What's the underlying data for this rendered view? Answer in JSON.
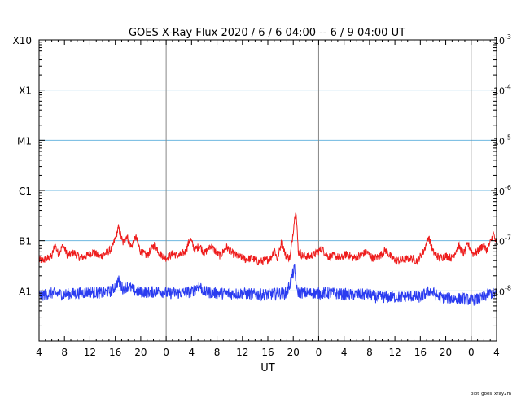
{
  "chart_data": {
    "type": "line",
    "title": "GOES X-Ray Flux   2020 /  6 /  6   04:00 --  6 /  9   04:00   UT",
    "xlabel": "UT",
    "footer": "plot_goes_xray2m",
    "x_range_hours": [
      0,
      72
    ],
    "x_tick_labels": [
      "4",
      "8",
      "12",
      "16",
      "20",
      "0",
      "4",
      "8",
      "12",
      "16",
      "20",
      "0",
      "4",
      "8",
      "12",
      "16",
      "20",
      "0",
      "4"
    ],
    "day_boundaries_hours": [
      20,
      44,
      68
    ],
    "y_scale": "log",
    "ylim": [
      1e-09,
      0.001
    ],
    "left_axis_labels": [
      {
        "label": "X10",
        "flux": 0.001
      },
      {
        "label": "X1",
        "flux": 0.0001
      },
      {
        "label": "M1",
        "flux": 1e-05
      },
      {
        "label": "C1",
        "flux": 1e-06
      },
      {
        "label": "B1",
        "flux": 1e-07
      },
      {
        "label": "A1",
        "flux": 1e-08
      }
    ],
    "right_axis_labels": [
      {
        "base": "10",
        "exp": "-3",
        "flux": 0.001
      },
      {
        "base": "10",
        "exp": "-4",
        "flux": 0.0001
      },
      {
        "base": "10",
        "exp": "-5",
        "flux": 1e-05
      },
      {
        "base": "10",
        "exp": "-6",
        "flux": 1e-06
      },
      {
        "base": "10",
        "exp": "-7",
        "flux": 1e-07
      },
      {
        "base": "10",
        "exp": "-8",
        "flux": 1e-08
      }
    ],
    "grid_flux_levels": [
      0.0001,
      1e-05,
      1e-06,
      1e-07,
      1e-08
    ],
    "series": [
      {
        "color": "#ee1c1c",
        "points": [
          [
            0,
            4e-08
          ],
          [
            1,
            4.2e-08
          ],
          [
            2,
            4.8e-08
          ],
          [
            2.5,
            8.5e-08
          ],
          [
            3,
            5.5e-08
          ],
          [
            3.8,
            8e-08
          ],
          [
            4.5,
            5e-08
          ],
          [
            5.5,
            5.8e-08
          ],
          [
            6.5,
            4.5e-08
          ],
          [
            7.5,
            5e-08
          ],
          [
            8.5,
            6e-08
          ],
          [
            9.5,
            4.8e-08
          ],
          [
            10.5,
            5.6e-08
          ],
          [
            11.5,
            7e-08
          ],
          [
            12.5,
            1.8e-07
          ],
          [
            13.2,
            9e-08
          ],
          [
            13.8,
            1.25e-07
          ],
          [
            14.5,
            7.5e-08
          ],
          [
            15.2,
            1.2e-07
          ],
          [
            16,
            6e-08
          ],
          [
            17,
            5e-08
          ],
          [
            18.2,
            8.5e-08
          ],
          [
            19,
            5.5e-08
          ],
          [
            20,
            4.5e-08
          ],
          [
            21,
            5.5e-08
          ],
          [
            22,
            5e-08
          ],
          [
            23,
            6e-08
          ],
          [
            23.8,
            1.1e-07
          ],
          [
            24.5,
            6.5e-08
          ],
          [
            25.3,
            8e-08
          ],
          [
            26,
            5.5e-08
          ],
          [
            27,
            8e-08
          ],
          [
            27.8,
            6e-08
          ],
          [
            28.5,
            5e-08
          ],
          [
            29.5,
            7.5e-08
          ],
          [
            30.5,
            5.5e-08
          ],
          [
            31.5,
            4.8e-08
          ],
          [
            32.5,
            4.2e-08
          ],
          [
            33.5,
            4.5e-08
          ],
          [
            34.5,
            3.8e-08
          ],
          [
            35.5,
            4e-08
          ],
          [
            36.5,
            4.5e-08
          ],
          [
            37,
            7e-08
          ],
          [
            37.5,
            4.2e-08
          ],
          [
            38.2,
            1e-07
          ],
          [
            38.8,
            5e-08
          ],
          [
            39.5,
            4.5e-08
          ],
          [
            40.4,
            4.5e-07
          ],
          [
            40.8,
            6e-08
          ],
          [
            41.5,
            5e-08
          ],
          [
            42.5,
            4.8e-08
          ],
          [
            43.5,
            5.5e-08
          ],
          [
            44.5,
            7e-08
          ],
          [
            45.5,
            4.8e-08
          ],
          [
            46.5,
            5e-08
          ],
          [
            47.5,
            4.5e-08
          ],
          [
            48.5,
            5.5e-08
          ],
          [
            49.5,
            4.5e-08
          ],
          [
            50.5,
            5e-08
          ],
          [
            51.5,
            6e-08
          ],
          [
            52.5,
            4.5e-08
          ],
          [
            53.5,
            4.8e-08
          ],
          [
            54.5,
            6.5e-08
          ],
          [
            55.5,
            4.5e-08
          ],
          [
            56.5,
            4e-08
          ],
          [
            57.5,
            4.2e-08
          ],
          [
            58.5,
            4.5e-08
          ],
          [
            59.5,
            4e-08
          ],
          [
            60.5,
            6e-08
          ],
          [
            61.3,
            1.2e-07
          ],
          [
            62,
            6e-08
          ],
          [
            63,
            4.5e-08
          ],
          [
            64,
            5e-08
          ],
          [
            65,
            4.5e-08
          ],
          [
            66,
            8e-08
          ],
          [
            66.8,
            5.5e-08
          ],
          [
            67.5,
            8.5e-08
          ],
          [
            68.3,
            5.5e-08
          ],
          [
            69,
            6e-08
          ],
          [
            69.8,
            8e-08
          ],
          [
            70.5,
            6.5e-08
          ],
          [
            71,
            9e-08
          ],
          [
            71.5,
            1.4e-07
          ],
          [
            72,
            8e-08
          ]
        ]
      },
      {
        "color": "#2a3cf0",
        "points": [
          [
            0,
            8e-09
          ],
          [
            2,
            9e-09
          ],
          [
            4,
            8.5e-09
          ],
          [
            6,
            9e-09
          ],
          [
            8,
            9.5e-09
          ],
          [
            10,
            9e-09
          ],
          [
            11.5,
            1e-08
          ],
          [
            12.5,
            1.6e-08
          ],
          [
            13.2,
            1.1e-08
          ],
          [
            14,
            1.25e-08
          ],
          [
            15,
            1e-08
          ],
          [
            16,
            9.5e-09
          ],
          [
            18,
            9.5e-09
          ],
          [
            19,
            1e-08
          ],
          [
            20,
            9e-09
          ],
          [
            22,
            9e-09
          ],
          [
            24,
            9.5e-09
          ],
          [
            25.2,
            1.3e-08
          ],
          [
            26,
            9.5e-09
          ],
          [
            28,
            9e-09
          ],
          [
            30,
            8.8e-09
          ],
          [
            32,
            9e-09
          ],
          [
            34,
            8.5e-09
          ],
          [
            36,
            8.5e-09
          ],
          [
            38,
            9e-09
          ],
          [
            39,
            9e-09
          ],
          [
            40.2,
            2.8e-08
          ],
          [
            40.6,
            9.5e-09
          ],
          [
            42,
            9e-09
          ],
          [
            44,
            9e-09
          ],
          [
            46,
            9e-09
          ],
          [
            48,
            8.5e-09
          ],
          [
            50,
            8.5e-09
          ],
          [
            52,
            8.5e-09
          ],
          [
            53,
            7.5e-09
          ],
          [
            55,
            7.5e-09
          ],
          [
            57,
            7.5e-09
          ],
          [
            58,
            8e-09
          ],
          [
            60,
            7.5e-09
          ],
          [
            61.5,
            1e-08
          ],
          [
            63,
            7.5e-09
          ],
          [
            65,
            7e-09
          ],
          [
            67,
            7e-09
          ],
          [
            68,
            6.5e-09
          ],
          [
            69.5,
            7e-09
          ],
          [
            71,
            9e-09
          ],
          [
            72,
            8.5e-09
          ]
        ]
      }
    ]
  }
}
